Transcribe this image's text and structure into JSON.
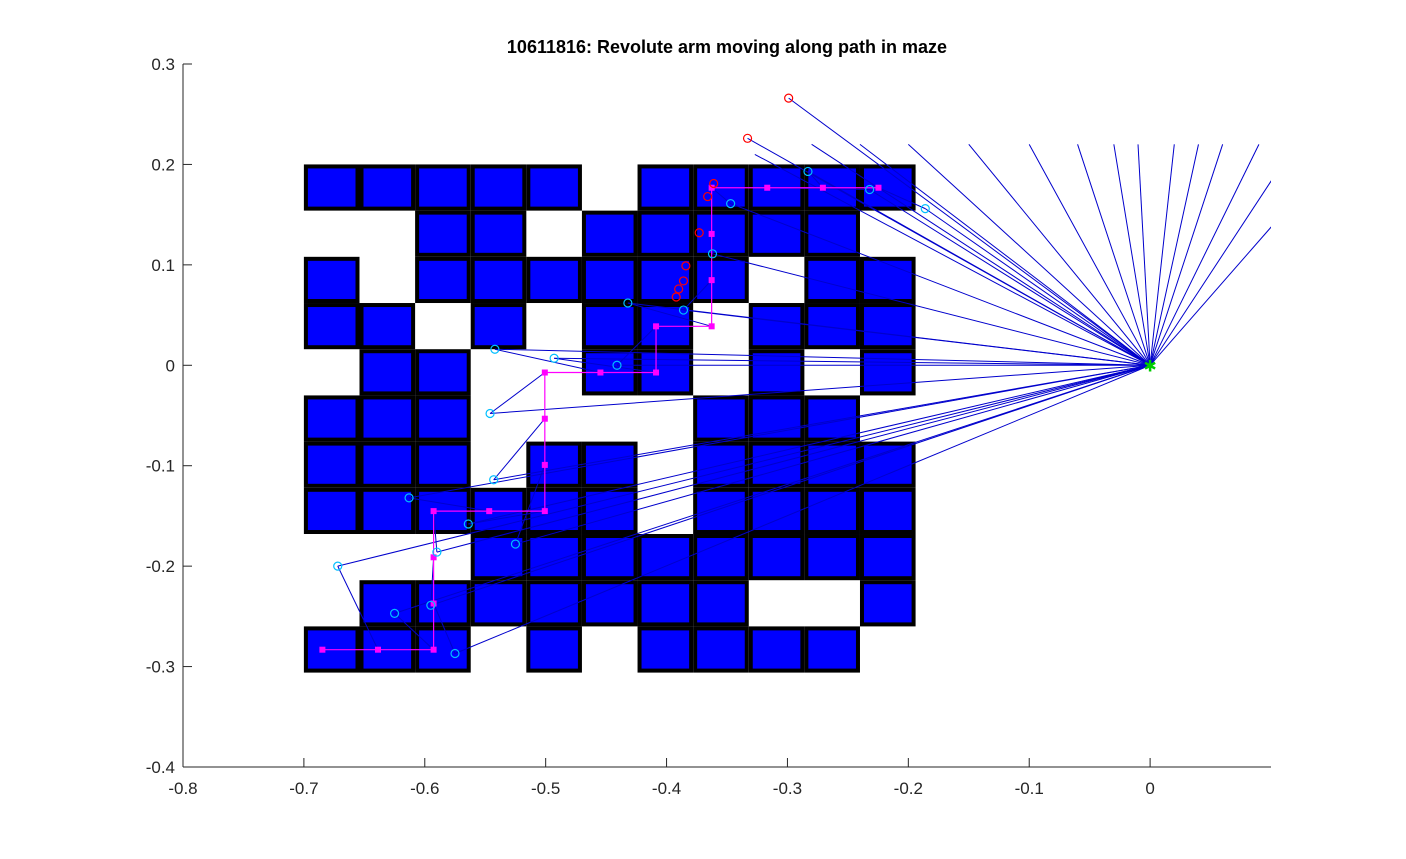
{
  "chart_data": {
    "type": "scatter",
    "title": "10611816: Revolute arm moving along path in maze",
    "xlabel": "",
    "ylabel": "",
    "xlim": [
      -0.8,
      0.1
    ],
    "ylim": [
      -0.4,
      0.3
    ],
    "xticks": [
      -0.8,
      -0.7,
      -0.6,
      -0.5,
      -0.4,
      -0.3,
      -0.2,
      -0.1,
      0
    ],
    "xtick_labels": [
      "-0.8",
      "-0.7",
      "-0.6",
      "-0.5",
      "-0.4",
      "-0.3",
      "-0.2",
      "-0.1",
      "0"
    ],
    "yticks": [
      0.3,
      0.2,
      0.1,
      0,
      -0.1,
      -0.2,
      -0.3,
      -0.4
    ],
    "ytick_labels": [
      "0.3",
      "0.2",
      "0.1",
      "0",
      "-0.1",
      "-0.2",
      "-0.3",
      "-0.4"
    ],
    "grid": false,
    "base": [
      0.0,
      0.0
    ],
    "maze": {
      "origin": [
        -0.7,
        0.2
      ],
      "cell_size": 0.046,
      "colors": {
        "wall": "#000000",
        "cell": "#0000ff",
        "open": "#ffffff"
      },
      "rows": [
        "11111011111",
        "00110111110",
        "10111111011",
        "11010110111",
        "01100110101",
        "11100001110",
        "11101101111",
        "11111101111",
        "00011111111",
        "01111111001",
        "11101011110"
      ]
    },
    "series": [
      {
        "name": "path",
        "color": "#ff00ff",
        "points": [
          [
            -0.2247,
            0.1768
          ],
          [
            -0.2707,
            0.1768
          ],
          [
            -0.3167,
            0.1768
          ],
          [
            -0.3627,
            0.1768
          ],
          [
            -0.3627,
            0.1308
          ],
          [
            -0.3627,
            0.0848
          ],
          [
            -0.3627,
            0.0388
          ],
          [
            -0.4087,
            0.0388
          ],
          [
            -0.4087,
            -0.0072
          ],
          [
            -0.4547,
            -0.0072
          ],
          [
            -0.5007,
            -0.0072
          ],
          [
            -0.5007,
            -0.0532
          ],
          [
            -0.5007,
            -0.0992
          ],
          [
            -0.5007,
            -0.1452
          ],
          [
            -0.5467,
            -0.1452
          ],
          [
            -0.5927,
            -0.1452
          ],
          [
            -0.5927,
            -0.1912
          ],
          [
            -0.5927,
            -0.2372
          ],
          [
            -0.5927,
            -0.2832
          ],
          [
            -0.6387,
            -0.2832
          ],
          [
            -0.6847,
            -0.2832
          ]
        ]
      },
      {
        "name": "elbow-joints",
        "color": "#00bfff",
        "points": [
          [
            -0.186,
            0.156
          ],
          [
            -0.283,
            0.193
          ],
          [
            -0.232,
            0.175
          ],
          [
            -0.347,
            0.161
          ],
          [
            -0.362,
            0.111
          ],
          [
            -0.386,
            0.055
          ],
          [
            -0.432,
            0.062
          ],
          [
            -0.441,
            0.0
          ],
          [
            -0.493,
            0.007
          ],
          [
            -0.542,
            0.016
          ],
          [
            -0.546,
            -0.048
          ],
          [
            -0.543,
            -0.114
          ],
          [
            -0.525,
            -0.178
          ],
          [
            -0.564,
            -0.158
          ],
          [
            -0.613,
            -0.132
          ],
          [
            -0.59,
            -0.186
          ],
          [
            -0.595,
            -0.239
          ],
          [
            -0.575,
            -0.287
          ],
          [
            -0.625,
            -0.247
          ],
          [
            -0.672,
            -0.2
          ]
        ]
      },
      {
        "name": "end-effector-trace",
        "color": "#ff0000",
        "points": [
          [
            -0.299,
            0.266
          ],
          [
            -0.333,
            0.226
          ],
          [
            -0.361,
            0.181
          ],
          [
            -0.366,
            0.168
          ],
          [
            -0.373,
            0.132
          ],
          [
            -0.384,
            0.099
          ],
          [
            -0.386,
            0.084
          ],
          [
            -0.39,
            0.076
          ],
          [
            -0.392,
            0.068
          ]
        ]
      }
    ],
    "arm_links": [
      [
        0.16,
        0.22
      ],
      [
        0.12,
        0.22
      ],
      [
        0.09,
        0.22
      ],
      [
        0.06,
        0.22
      ],
      [
        0.04,
        0.22
      ],
      [
        0.02,
        0.22
      ],
      [
        -0.01,
        0.22
      ],
      [
        -0.03,
        0.22
      ],
      [
        -0.06,
        0.22
      ],
      [
        -0.1,
        0.22
      ],
      [
        -0.15,
        0.22
      ],
      [
        -0.2,
        0.22
      ],
      [
        -0.24,
        0.22
      ],
      [
        -0.28,
        0.22
      ],
      [
        -0.186,
        0.156
      ],
      [
        -0.283,
        0.193
      ],
      [
        -0.232,
        0.175
      ],
      [
        -0.347,
        0.161
      ],
      [
        -0.362,
        0.111
      ],
      [
        -0.386,
        0.055
      ],
      [
        -0.432,
        0.062
      ],
      [
        -0.441,
        0.0
      ],
      [
        -0.493,
        0.007
      ],
      [
        -0.542,
        0.016
      ],
      [
        -0.546,
        -0.048
      ],
      [
        -0.543,
        -0.114
      ],
      [
        -0.525,
        -0.178
      ],
      [
        -0.564,
        -0.158
      ],
      [
        -0.613,
        -0.132
      ],
      [
        -0.59,
        -0.186
      ],
      [
        -0.595,
        -0.239
      ],
      [
        -0.575,
        -0.287
      ],
      [
        -0.625,
        -0.247
      ],
      [
        -0.672,
        -0.2
      ],
      [
        -0.299,
        0.266
      ],
      [
        -0.333,
        0.226
      ],
      [
        -0.327,
        0.21
      ]
    ]
  }
}
